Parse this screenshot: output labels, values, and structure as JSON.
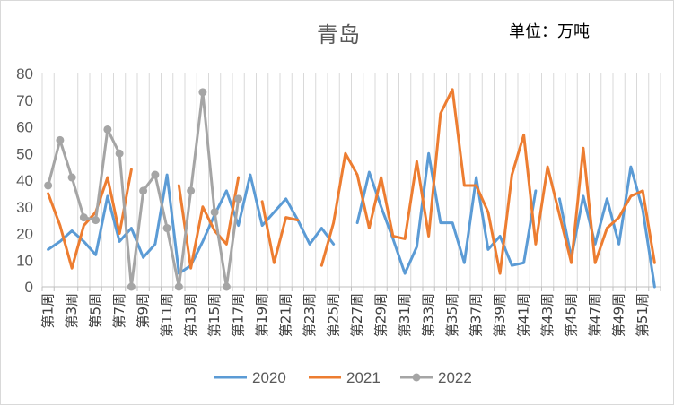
{
  "chart_data": {
    "type": "line",
    "title": "青岛",
    "unit_label": "单位：万吨",
    "ylim": [
      0,
      80
    ],
    "yticks": [
      0,
      10,
      20,
      30,
      40,
      50,
      60,
      70,
      80
    ],
    "grid": "vertical category lines",
    "legend_position": "bottom",
    "categories": [
      "第1周",
      "第2周",
      "第3周",
      "第4周",
      "第5周",
      "第6周",
      "第7周",
      "第8周",
      "第9周",
      "第10周",
      "第11周",
      "第12周",
      "第13周",
      "第14周",
      "第15周",
      "第16周",
      "第17周",
      "第18周",
      "第19周",
      "第20周",
      "第21周",
      "第22周",
      "第23周",
      "第24周",
      "第25周",
      "第26周",
      "第27周",
      "第28周",
      "第29周",
      "第30周",
      "第31周",
      "第32周",
      "第33周",
      "第34周",
      "第35周",
      "第36周",
      "第37周",
      "第38周",
      "第39周",
      "第40周",
      "第41周",
      "第42周",
      "第43周",
      "第44周",
      "第45周",
      "第46周",
      "第47周",
      "第48周",
      "第49周",
      "第50周",
      "第51周",
      "第52周"
    ],
    "tick_labels": [
      "第1周",
      "第3周",
      "第5周",
      "第7周",
      "第9周",
      "第11周",
      "第13周",
      "第15周",
      "第17周",
      "第19周",
      "第21周",
      "第23周",
      "第25周",
      "第27周",
      "第29周",
      "第31周",
      "第33周",
      "第35周",
      "第37周",
      "第39周",
      "第41周",
      "第43周",
      "第45周",
      "第47周",
      "第49周",
      "第51周"
    ],
    "series": [
      {
        "name": "2020",
        "color": "#5b9bd5",
        "values": [
          14,
          17,
          21,
          17,
          12,
          34,
          17,
          22,
          11,
          16,
          42,
          5,
          8,
          17,
          27,
          36,
          23,
          42,
          23,
          28,
          33,
          25,
          16,
          22,
          16,
          null,
          24,
          43,
          30,
          18,
          5,
          15,
          50,
          24,
          24,
          9,
          41,
          14,
          19,
          8,
          9,
          36,
          null,
          33,
          11,
          34,
          16,
          33,
          16,
          45,
          29,
          0
        ]
      },
      {
        "name": "2021",
        "color": "#ed7d31",
        "values": [
          35,
          23,
          7,
          23,
          28,
          41,
          20,
          44,
          null,
          null,
          null,
          38,
          7,
          30,
          21,
          16,
          41,
          null,
          32,
          9,
          26,
          25,
          null,
          8,
          24,
          50,
          42,
          22,
          41,
          19,
          18,
          47,
          19,
          65,
          74,
          38,
          38,
          28,
          5,
          42,
          57,
          16,
          45,
          27,
          9,
          52,
          9,
          22,
          26,
          34,
          36,
          9
        ]
      },
      {
        "name": "2022",
        "color": "#a5a5a5",
        "values": [
          38,
          55,
          41,
          26,
          25,
          59,
          50,
          0,
          36,
          42,
          22,
          0,
          36,
          73,
          28,
          0,
          33,
          null,
          null,
          null,
          null,
          null,
          null,
          null,
          null,
          null,
          null,
          null,
          null,
          null,
          null,
          null,
          null,
          null,
          null,
          null,
          null,
          null,
          null,
          null,
          null,
          null,
          null,
          null,
          null,
          null,
          null,
          null,
          null,
          null,
          null,
          null
        ]
      }
    ]
  }
}
